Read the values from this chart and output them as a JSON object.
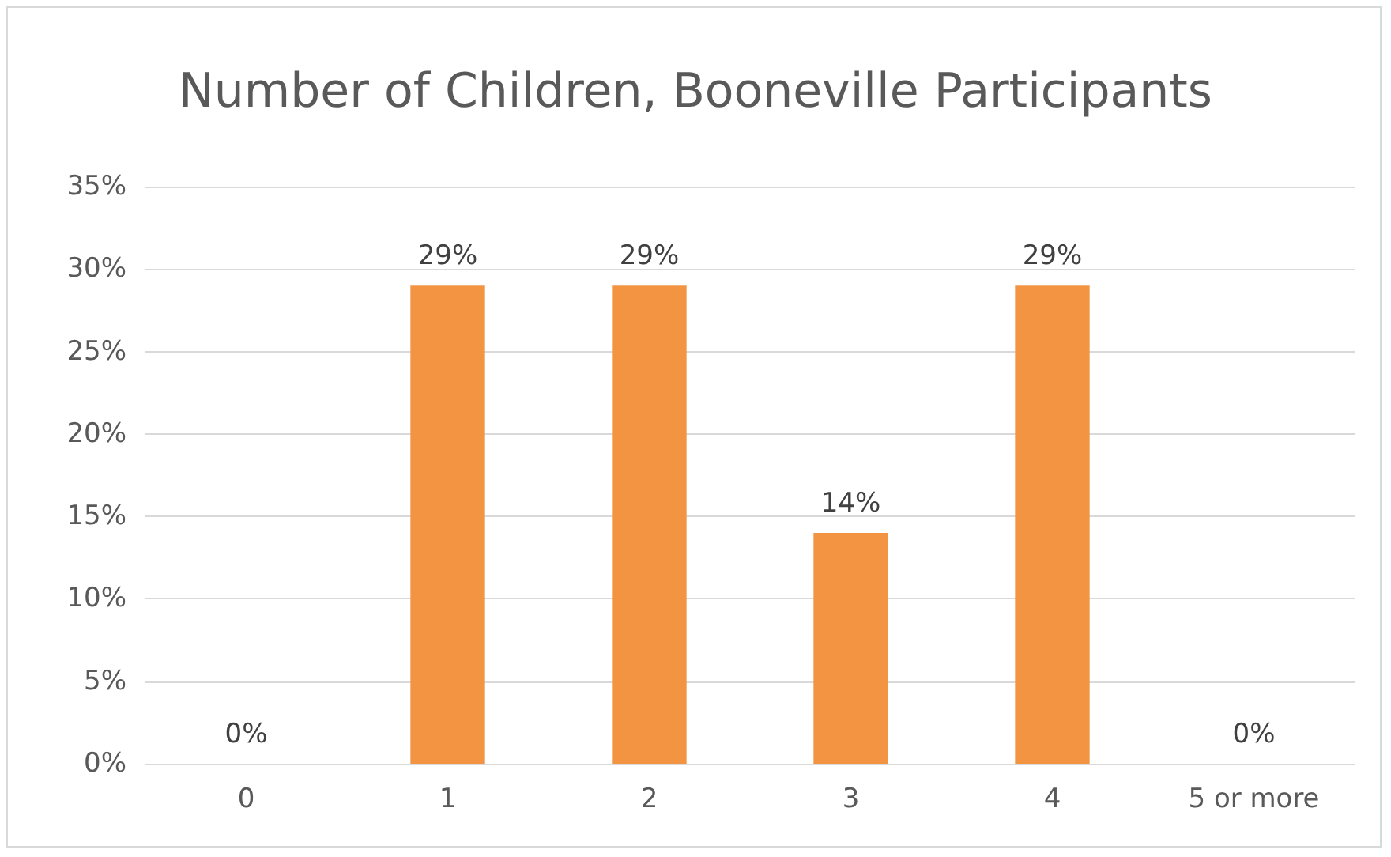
{
  "chart_data": {
    "type": "bar",
    "title": "Number of Children, Booneville Participants",
    "categories": [
      "0",
      "1",
      "2",
      "3",
      "4",
      "5 or more"
    ],
    "values": [
      0,
      29,
      29,
      14,
      29,
      0
    ],
    "value_labels": [
      "0%",
      "29%",
      "29%",
      "14%",
      "29%",
      "0%"
    ],
    "color": "#f39443",
    "ylim": [
      0,
      35
    ],
    "yticks": [
      {
        "value": 0,
        "label": "0%"
      },
      {
        "value": 5,
        "label": "5%"
      },
      {
        "value": 10,
        "label": "10%"
      },
      {
        "value": 15,
        "label": "15%"
      },
      {
        "value": 20,
        "label": "20%"
      },
      {
        "value": 25,
        "label": "25%"
      },
      {
        "value": 30,
        "label": "30%"
      },
      {
        "value": 35,
        "label": "35%"
      }
    ],
    "grid": "y"
  }
}
